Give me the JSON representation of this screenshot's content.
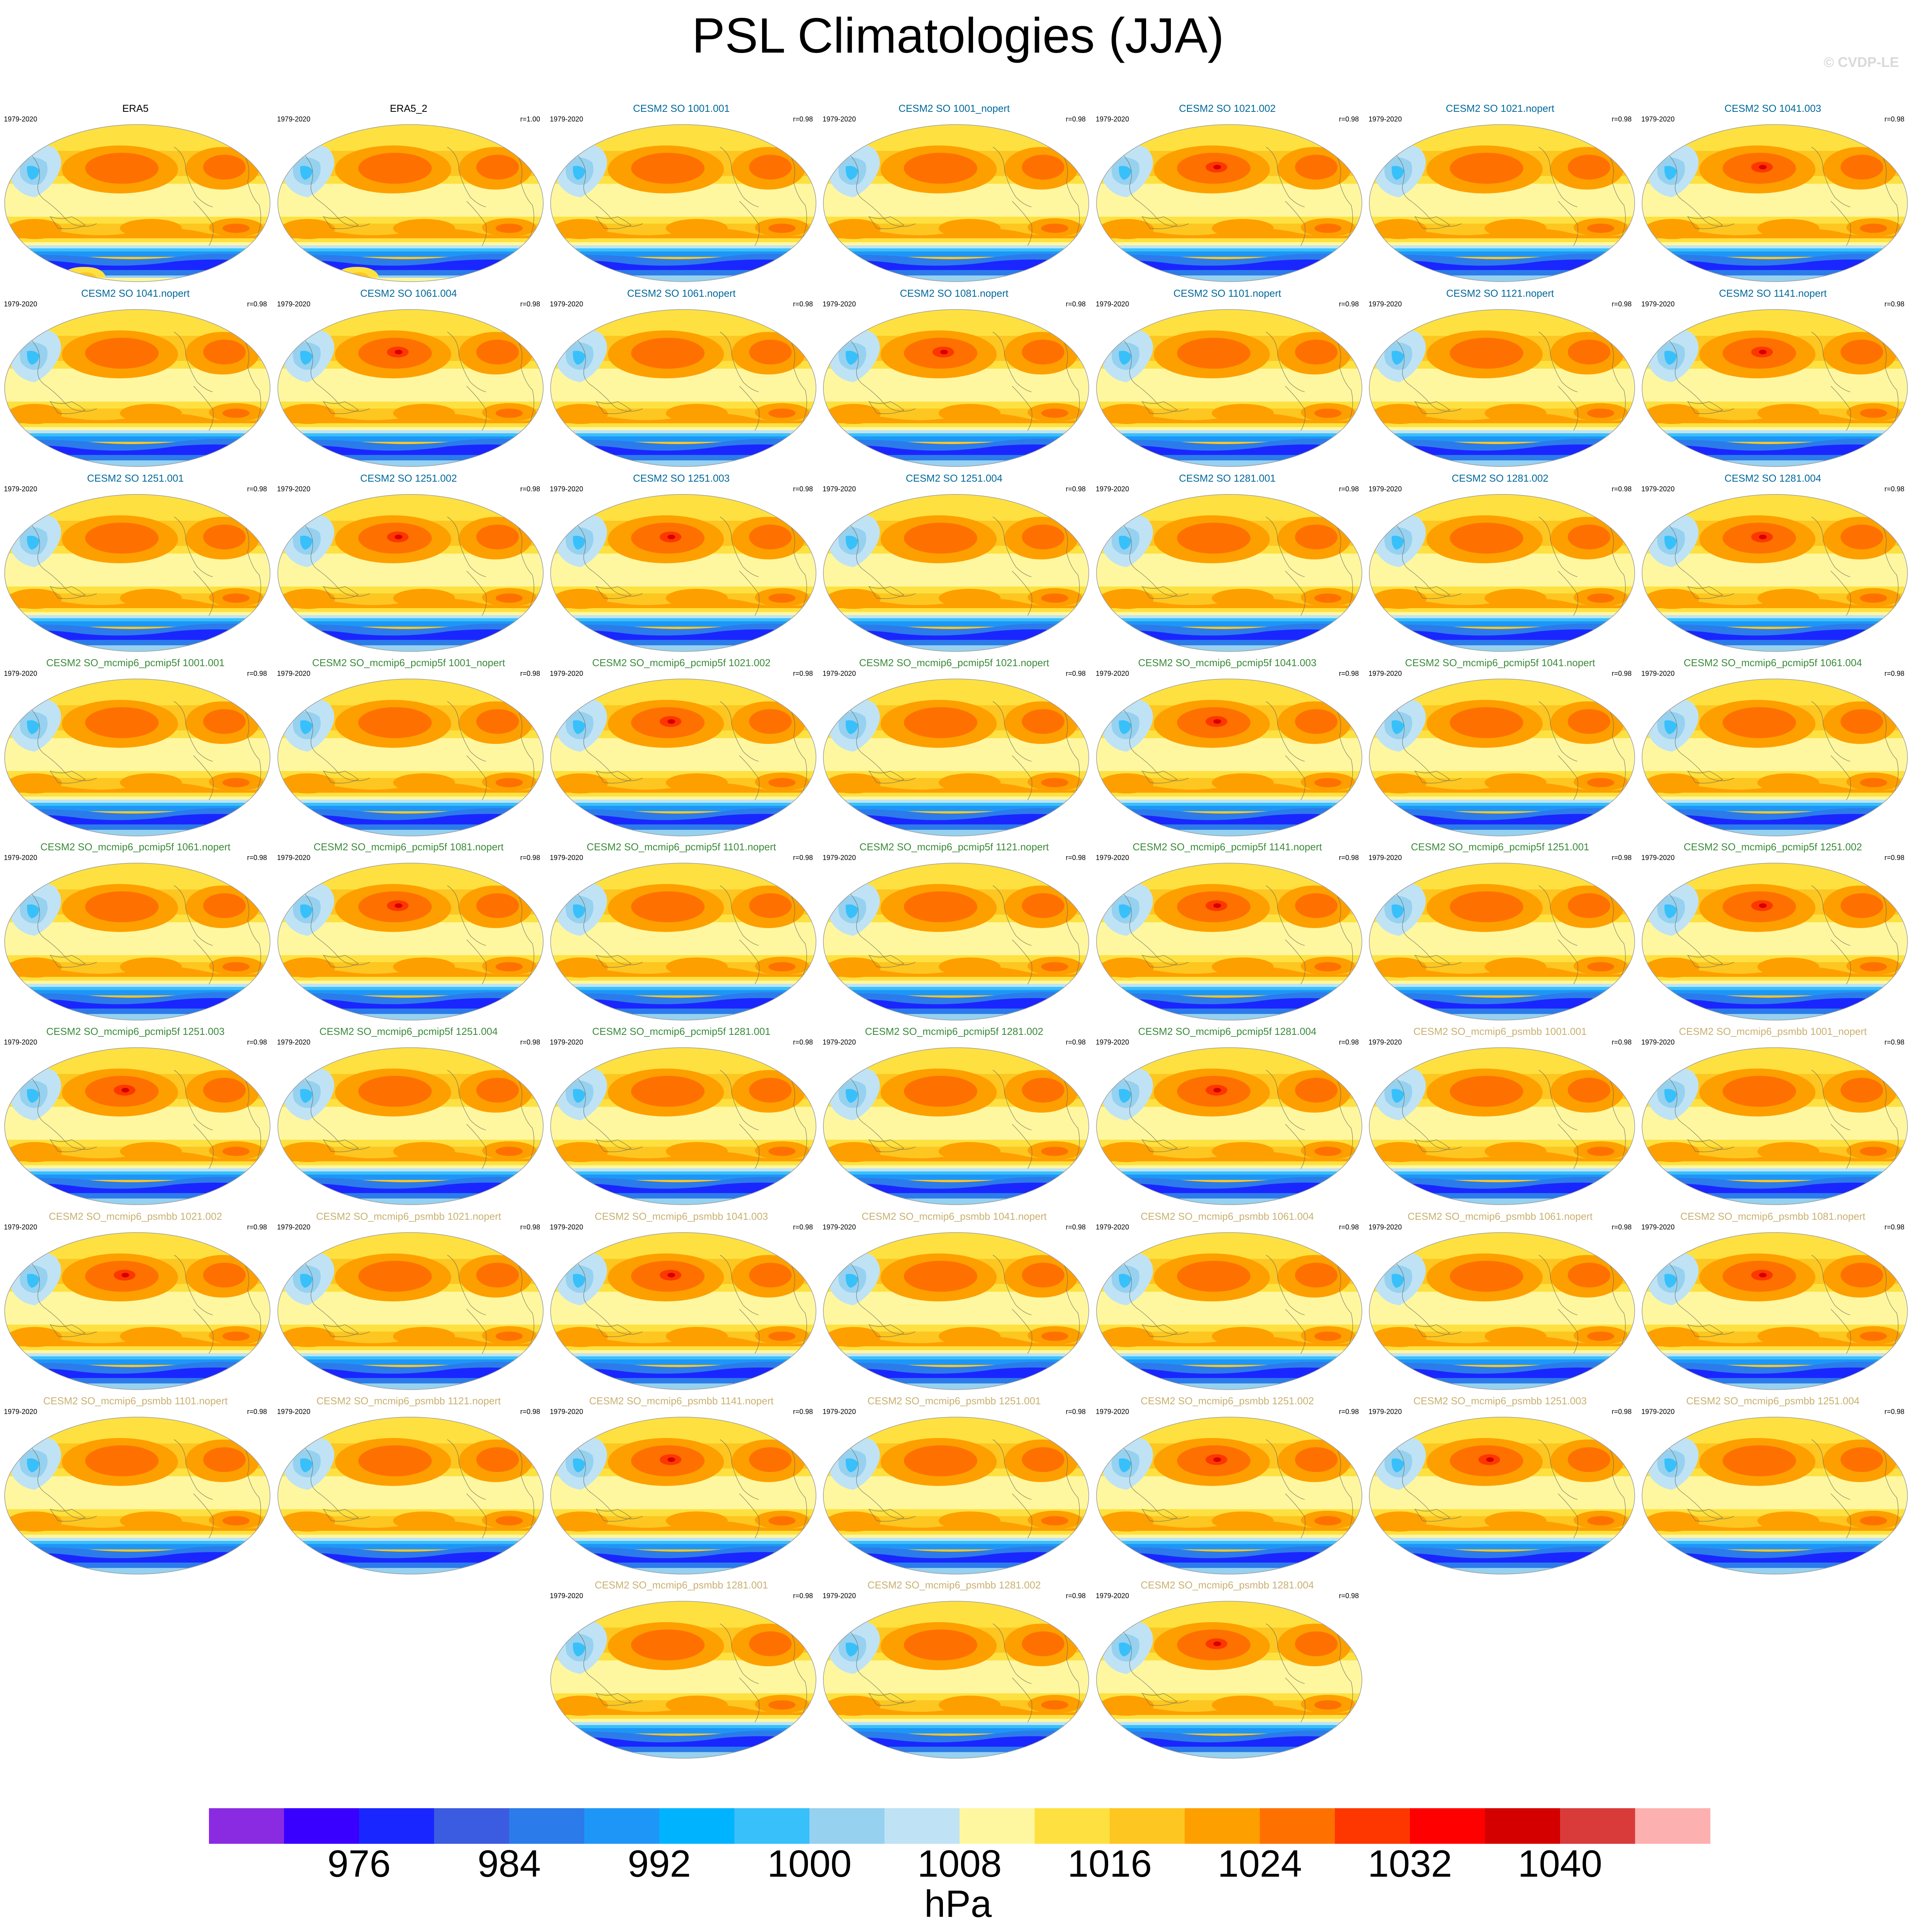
{
  "title": "PSL Climatologies (JJA)",
  "watermark": "© CVDP-LE",
  "colorbar": {
    "units": "hPa",
    "colors": [
      "#8a2be2",
      "#3a00ff",
      "#1a26ff",
      "#3b5ce0",
      "#2c7bea",
      "#1e96f7",
      "#00b3ff",
      "#38c0fb",
      "#96d1f0",
      "#bfe3f5",
      "#fef7a0",
      "#fee140",
      "#fec620",
      "#fe9f00",
      "#fe7100",
      "#fe3700",
      "#ff0000",
      "#d40000",
      "#d93b3b",
      "#fcb0b0"
    ],
    "labels": [
      "976",
      "984",
      "992",
      "1000",
      "1008",
      "1016",
      "1024",
      "1032",
      "1040"
    ]
  },
  "title_colors": {
    "obs": "#000000",
    "so": "#00689a",
    "pcmip5f": "#3a8a3a",
    "psmbb": "#c8b070"
  },
  "panels": [
    {
      "title": "ERA5",
      "years": "1979-2020",
      "r": "",
      "group": "obs",
      "variant": "obs"
    },
    {
      "title": "ERA5_2",
      "years": "1979-2020",
      "r": "r=1.00",
      "group": "obs",
      "variant": "obs"
    },
    {
      "title": "CESM2 SO 1001.001",
      "years": "1979-2020",
      "r": "r=0.98",
      "group": "so",
      "variant": "a"
    },
    {
      "title": "CESM2 SO 1001_nopert",
      "years": "1979-2020",
      "r": "r=0.98",
      "group": "so",
      "variant": "a"
    },
    {
      "title": "CESM2 SO 1021.002",
      "years": "1979-2020",
      "r": "r=0.98",
      "group": "so",
      "variant": "b"
    },
    {
      "title": "CESM2 SO 1021.nopert",
      "years": "1979-2020",
      "r": "r=0.98",
      "group": "so",
      "variant": "a"
    },
    {
      "title": "CESM2 SO 1041.003",
      "years": "1979-2020",
      "r": "r=0.98",
      "group": "so",
      "variant": "b"
    },
    {
      "title": "CESM2 SO 1041.nopert",
      "years": "1979-2020",
      "r": "r=0.98",
      "group": "so",
      "variant": "a"
    },
    {
      "title": "CESM2 SO 1061.004",
      "years": "1979-2020",
      "r": "r=0.98",
      "group": "so",
      "variant": "b"
    },
    {
      "title": "CESM2 SO 1061.nopert",
      "years": "1979-2020",
      "r": "r=0.98",
      "group": "so",
      "variant": "a"
    },
    {
      "title": "CESM2 SO 1081.nopert",
      "years": "1979-2020",
      "r": "r=0.98",
      "group": "so",
      "variant": "b"
    },
    {
      "title": "CESM2 SO 1101.nopert",
      "years": "1979-2020",
      "r": "r=0.98",
      "group": "so",
      "variant": "a"
    },
    {
      "title": "CESM2 SO 1121.nopert",
      "years": "1979-2020",
      "r": "r=0.98",
      "group": "so",
      "variant": "a"
    },
    {
      "title": "CESM2 SO 1141.nopert",
      "years": "1979-2020",
      "r": "r=0.98",
      "group": "so",
      "variant": "b"
    },
    {
      "title": "CESM2 SO 1251.001",
      "years": "1979-2020",
      "r": "r=0.98",
      "group": "so",
      "variant": "a"
    },
    {
      "title": "CESM2 SO 1251.002",
      "years": "1979-2020",
      "r": "r=0.98",
      "group": "so",
      "variant": "b"
    },
    {
      "title": "CESM2 SO 1251.003",
      "years": "1979-2020",
      "r": "r=0.98",
      "group": "so",
      "variant": "b"
    },
    {
      "title": "CESM2 SO 1251.004",
      "years": "1979-2020",
      "r": "r=0.98",
      "group": "so",
      "variant": "a"
    },
    {
      "title": "CESM2 SO 1281.001",
      "years": "1979-2020",
      "r": "r=0.98",
      "group": "so",
      "variant": "a"
    },
    {
      "title": "CESM2 SO 1281.002",
      "years": "1979-2020",
      "r": "r=0.98",
      "group": "so",
      "variant": "a"
    },
    {
      "title": "CESM2 SO 1281.004",
      "years": "1979-2020",
      "r": "r=0.98",
      "group": "so",
      "variant": "b"
    },
    {
      "title": "CESM2 SO_mcmip6_pcmip5f 1001.001",
      "years": "1979-2020",
      "r": "r=0.98",
      "group": "pcmip5f",
      "variant": "a"
    },
    {
      "title": "CESM2 SO_mcmip6_pcmip5f 1001_nopert",
      "years": "1979-2020",
      "r": "r=0.98",
      "group": "pcmip5f",
      "variant": "a"
    },
    {
      "title": "CESM2 SO_mcmip6_pcmip5f 1021.002",
      "years": "1979-2020",
      "r": "r=0.98",
      "group": "pcmip5f",
      "variant": "b"
    },
    {
      "title": "CESM2 SO_mcmip6_pcmip5f 1021.nopert",
      "years": "1979-2020",
      "r": "r=0.98",
      "group": "pcmip5f",
      "variant": "a"
    },
    {
      "title": "CESM2 SO_mcmip6_pcmip5f 1041.003",
      "years": "1979-2020",
      "r": "r=0.98",
      "group": "pcmip5f",
      "variant": "b"
    },
    {
      "title": "CESM2 SO_mcmip6_pcmip5f 1041.nopert",
      "years": "1979-2020",
      "r": "r=0.98",
      "group": "pcmip5f",
      "variant": "a"
    },
    {
      "title": "CESM2 SO_mcmip6_pcmip5f 1061.004",
      "years": "1979-2020",
      "r": "r=0.98",
      "group": "pcmip5f",
      "variant": "a"
    },
    {
      "title": "CESM2 SO_mcmip6_pcmip5f 1061.nopert",
      "years": "1979-2020",
      "r": "r=0.98",
      "group": "pcmip5f",
      "variant": "a"
    },
    {
      "title": "CESM2 SO_mcmip6_pcmip5f 1081.nopert",
      "years": "1979-2020",
      "r": "r=0.98",
      "group": "pcmip5f",
      "variant": "b"
    },
    {
      "title": "CESM2 SO_mcmip6_pcmip5f 1101.nopert",
      "years": "1979-2020",
      "r": "r=0.98",
      "group": "pcmip5f",
      "variant": "a"
    },
    {
      "title": "CESM2 SO_mcmip6_pcmip5f 1121.nopert",
      "years": "1979-2020",
      "r": "r=0.98",
      "group": "pcmip5f",
      "variant": "a"
    },
    {
      "title": "CESM2 SO_mcmip6_pcmip5f 1141.nopert",
      "years": "1979-2020",
      "r": "r=0.98",
      "group": "pcmip5f",
      "variant": "b"
    },
    {
      "title": "CESM2 SO_mcmip6_pcmip5f 1251.001",
      "years": "1979-2020",
      "r": "r=0.98",
      "group": "pcmip5f",
      "variant": "a"
    },
    {
      "title": "CESM2 SO_mcmip6_pcmip5f 1251.002",
      "years": "1979-2020",
      "r": "r=0.98",
      "group": "pcmip5f",
      "variant": "b"
    },
    {
      "title": "CESM2 SO_mcmip6_pcmip5f 1251.003",
      "years": "1979-2020",
      "r": "r=0.98",
      "group": "pcmip5f",
      "variant": "b"
    },
    {
      "title": "CESM2 SO_mcmip6_pcmip5f 1251.004",
      "years": "1979-2020",
      "r": "r=0.98",
      "group": "pcmip5f",
      "variant": "a"
    },
    {
      "title": "CESM2 SO_mcmip6_pcmip5f 1281.001",
      "years": "1979-2020",
      "r": "r=0.98",
      "group": "pcmip5f",
      "variant": "a"
    },
    {
      "title": "CESM2 SO_mcmip6_pcmip5f 1281.002",
      "years": "1979-2020",
      "r": "r=0.98",
      "group": "pcmip5f",
      "variant": "a"
    },
    {
      "title": "CESM2 SO_mcmip6_pcmip5f 1281.004",
      "years": "1979-2020",
      "r": "r=0.98",
      "group": "pcmip5f",
      "variant": "b"
    },
    {
      "title": "CESM2 SO_mcmip6_psmbb 1001.001",
      "years": "1979-2020",
      "r": "r=0.98",
      "group": "psmbb",
      "variant": "a"
    },
    {
      "title": "CESM2 SO_mcmip6_psmbb 1001_nopert",
      "years": "1979-2020",
      "r": "r=0.98",
      "group": "psmbb",
      "variant": "a"
    },
    {
      "title": "CESM2 SO_mcmip6_psmbb 1021.002",
      "years": "1979-2020",
      "r": "r=0.98",
      "group": "psmbb",
      "variant": "b"
    },
    {
      "title": "CESM2 SO_mcmip6_psmbb 1021.nopert",
      "years": "1979-2020",
      "r": "r=0.98",
      "group": "psmbb",
      "variant": "a"
    },
    {
      "title": "CESM2 SO_mcmip6_psmbb 1041.003",
      "years": "1979-2020",
      "r": "r=0.98",
      "group": "psmbb",
      "variant": "b"
    },
    {
      "title": "CESM2 SO_mcmip6_psmbb 1041.nopert",
      "years": "1979-2020",
      "r": "r=0.98",
      "group": "psmbb",
      "variant": "a"
    },
    {
      "title": "CESM2 SO_mcmip6_psmbb 1061.004",
      "years": "1979-2020",
      "r": "r=0.98",
      "group": "psmbb",
      "variant": "a"
    },
    {
      "title": "CESM2 SO_mcmip6_psmbb 1061.nopert",
      "years": "1979-2020",
      "r": "r=0.98",
      "group": "psmbb",
      "variant": "a"
    },
    {
      "title": "CESM2 SO_mcmip6_psmbb 1081.nopert",
      "years": "1979-2020",
      "r": "r=0.98",
      "group": "psmbb",
      "variant": "b"
    },
    {
      "title": "CESM2 SO_mcmip6_psmbb 1101.nopert",
      "years": "1979-2020",
      "r": "r=0.98",
      "group": "psmbb",
      "variant": "a"
    },
    {
      "title": "CESM2 SO_mcmip6_psmbb 1121.nopert",
      "years": "1979-2020",
      "r": "r=0.98",
      "group": "psmbb",
      "variant": "a"
    },
    {
      "title": "CESM2 SO_mcmip6_psmbb 1141.nopert",
      "years": "1979-2020",
      "r": "r=0.98",
      "group": "psmbb",
      "variant": "b"
    },
    {
      "title": "CESM2 SO_mcmip6_psmbb 1251.001",
      "years": "1979-2020",
      "r": "r=0.98",
      "group": "psmbb",
      "variant": "a"
    },
    {
      "title": "CESM2 SO_mcmip6_psmbb 1251.002",
      "years": "1979-2020",
      "r": "r=0.98",
      "group": "psmbb",
      "variant": "b"
    },
    {
      "title": "CESM2 SO_mcmip6_psmbb 1251.003",
      "years": "1979-2020",
      "r": "r=0.98",
      "group": "psmbb",
      "variant": "b"
    },
    {
      "title": "CESM2 SO_mcmip6_psmbb 1251.004",
      "years": "1979-2020",
      "r": "r=0.98",
      "group": "psmbb",
      "variant": "a"
    },
    {
      "title": "CESM2 SO_mcmip6_psmbb 1281.001",
      "years": "1979-2020",
      "r": "r=0.98",
      "group": "psmbb",
      "variant": "a"
    },
    {
      "title": "CESM2 SO_mcmip6_psmbb 1281.002",
      "years": "1979-2020",
      "r": "r=0.98",
      "group": "psmbb",
      "variant": "a"
    },
    {
      "title": "CESM2 SO_mcmip6_psmbb 1281.004",
      "years": "1979-2020",
      "r": "r=0.98",
      "group": "psmbb",
      "variant": "b"
    }
  ]
}
